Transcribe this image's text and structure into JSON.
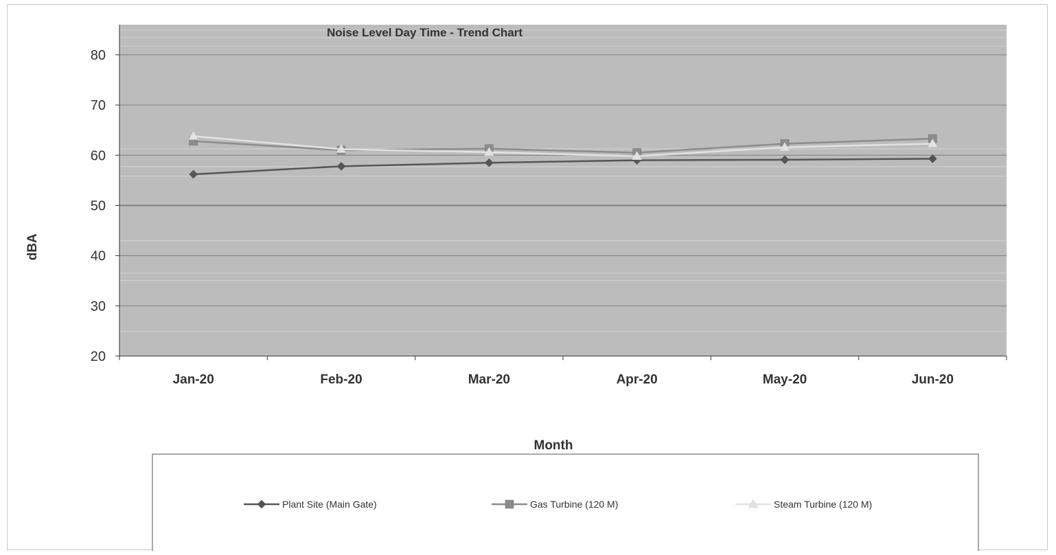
{
  "chart_data": {
    "type": "line",
    "title": "Noise Level Day Time - Trend Chart",
    "xlabel": "Month",
    "ylabel": "dBA",
    "categories": [
      "Jan-20",
      "Feb-20",
      "Mar-20",
      "Apr-20",
      "May-20",
      "Jun-20"
    ],
    "ylim": [
      20,
      80
    ],
    "yticks": [
      "20",
      "30",
      "40",
      "50",
      "60",
      "70",
      "80"
    ],
    "grid": true,
    "legend_position": "bottom",
    "series": [
      {
        "name": "Plant Site (Main Gate)",
        "values": [
          56.2,
          57.8,
          58.5,
          59.0,
          59.1,
          59.3
        ],
        "color": "#555555",
        "marker": "diamond"
      },
      {
        "name": "Gas Turbine (120 M)",
        "values": [
          62.8,
          61.0,
          61.3,
          60.5,
          62.3,
          63.3
        ],
        "color": "#8c8c8c",
        "marker": "square"
      },
      {
        "name": "Steam Turbine (120 M)",
        "values": [
          63.8,
          61.2,
          60.6,
          59.8,
          61.6,
          62.3
        ],
        "color": "#e2e2e2",
        "marker": "triangle"
      }
    ],
    "plot_background": "#bcbcbc",
    "gridline_color": "#7f7f7f"
  }
}
